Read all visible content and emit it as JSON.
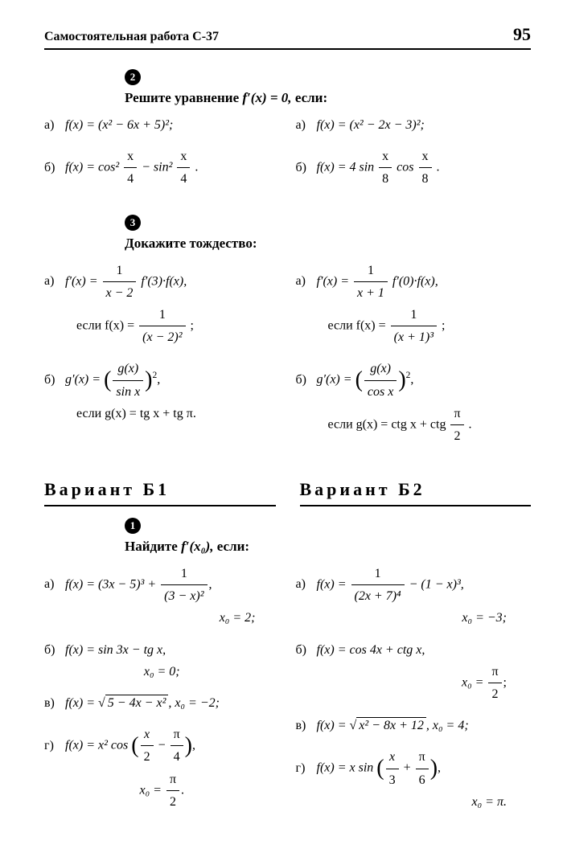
{
  "page_number": "95",
  "header_title": "Самостоятельная работа С-37",
  "s2": {
    "bullet": "2",
    "prompt_prefix": "Решите уравнение ",
    "prompt_math": "f′(x) = 0, ",
    "prompt_suffix": "если:",
    "left": {
      "a_label": "а)",
      "a": "f(x) = (x² − 6x + 5)²;",
      "b_label": "б)",
      "b_prefix": "f(x) = cos²",
      "b_frac1_n": "x",
      "b_frac1_d": "4",
      "b_mid": " − sin²",
      "b_frac2_n": "x",
      "b_frac2_d": "4",
      "b_suffix": "."
    },
    "right": {
      "a_label": "а)",
      "a": "f(x) = (x² − 2x − 3)²;",
      "b_label": "б)",
      "b_prefix": "f(x) = 4 sin",
      "b_frac1_n": "x",
      "b_frac1_d": "8",
      "b_mid": " cos",
      "b_frac2_n": "x",
      "b_frac2_d": "8",
      "b_suffix": "."
    }
  },
  "s3": {
    "bullet": "3",
    "prompt": "Докажите тождество:",
    "left": {
      "a_label": "а)",
      "a_lhs": "f′(x) = ",
      "a_frac_n": "1",
      "a_frac_d": "x − 2",
      "a_rhs": " f′(3)·f(x),",
      "a_if": "если  f(x) = ",
      "a_if_n": "1",
      "a_if_d": "(x − 2)²",
      "a_semi": ";",
      "b_label": "б)",
      "b_lhs": "g′(x) = ",
      "b_inner_n": "g(x)",
      "b_inner_d": "sin x",
      "b_exp": "2",
      "b_comma": ",",
      "b_if": "если  g(x) = tg x + tg π."
    },
    "right": {
      "a_label": "а)",
      "a_lhs": "f′(x) = ",
      "a_frac_n": "1",
      "a_frac_d": "x + 1",
      "a_rhs": " f′(0)·f(x),",
      "a_if": "если f(x) = ",
      "a_if_n": "1",
      "a_if_d": "(x + 1)³",
      "a_semi": ";",
      "b_label": "б)",
      "b_lhs": "g′(x) = ",
      "b_inner_n": "g(x)",
      "b_inner_d": "cos x",
      "b_exp": "2",
      "b_comma": ",",
      "b_if_prefix": "если  g(x) = ctg x + ctg",
      "b_if_frac_n": "π",
      "b_if_frac_d": "2",
      "b_if_suffix": "."
    }
  },
  "variants": {
    "b1": "Вариант Б1",
    "b2": "Вариант Б2"
  },
  "s1b": {
    "bullet": "1",
    "prompt_prefix": "Найдите ",
    "prompt_math": "f′(x₀), ",
    "prompt_suffix": "если:",
    "left": {
      "a_label": "а)",
      "a_lhs": "f(x) = (3x − 5)³ + ",
      "a_frac_n": "1",
      "a_frac_d": "(3 − x)²",
      "a_comma": ",",
      "a_x0": "x₀ = 2;",
      "b_label": "б)",
      "b": "f(x) = sin 3x − tg x,",
      "b_x0": "x₀ = 0;",
      "c_label": "в)",
      "c_prefix": "f(x) = ",
      "c_sqrt": "5 − 4x − x²",
      "c_suffix": ", x₀ = −2;",
      "d_label": "г)",
      "d_prefix": "f(x) = x² cos",
      "d_inner_n1": "x",
      "d_inner_d1": "2",
      "d_minus": " − ",
      "d_inner_n2": "π",
      "d_inner_d2": "4",
      "d_comma": ",",
      "d_x0_prefix": "x₀ = ",
      "d_x0_n": "π",
      "d_x0_d": "2",
      "d_x0_suffix": "."
    },
    "right": {
      "a_label": "а)",
      "a_lhs": "f(x) = ",
      "a_frac_n": "1",
      "a_frac_d": "(2x + 7)⁴",
      "a_rhs": " − (1 − x)³,",
      "a_x0": "x₀ = −3;",
      "b_label": "б)",
      "b": "f(x) = cos 4x + ctg x,",
      "b_x0_prefix": "x₀ = ",
      "b_x0_n": "π",
      "b_x0_d": "2",
      "b_x0_semi": ";",
      "c_label": "в)",
      "c_prefix": "f(x) = ",
      "c_sqrt": "x² − 8x + 12",
      "c_suffix": ", x₀ = 4;",
      "d_label": "г)",
      "d_prefix": "f(x) = x sin",
      "d_inner_n1": "x",
      "d_inner_d1": "3",
      "d_plus": " + ",
      "d_inner_n2": "π",
      "d_inner_d2": "6",
      "d_comma": ",",
      "d_x0": "x₀ = π."
    }
  },
  "style": {
    "background": "#ffffff",
    "text_color": "#000000",
    "body_fontsize": 16,
    "header_fontsize": 16,
    "pagenum_fontsize": 22,
    "variant_fontsize": 22,
    "font_family": "Times New Roman"
  }
}
